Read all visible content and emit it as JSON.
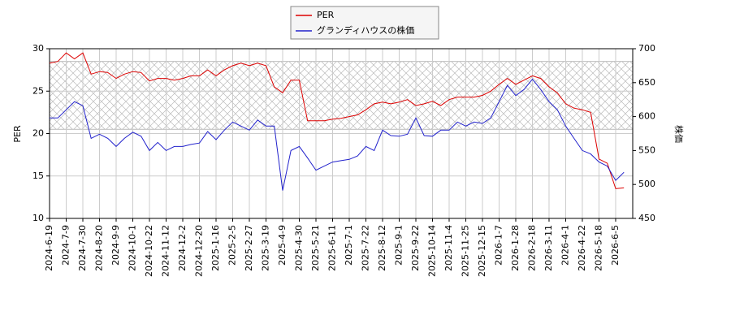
{
  "chart_data": {
    "type": "line",
    "categories": [
      "2024-6-19",
      null,
      "2024-7-9",
      null,
      "2024-7-30",
      null,
      "2024-8-20",
      null,
      "2024-9-9",
      null,
      "2024-10-1",
      null,
      "2024-10-22",
      null,
      "2024-11-12",
      null,
      "2024-12-2",
      null,
      "2024-12-20",
      null,
      "2025-1-16",
      null,
      "2025-2-5",
      null,
      "2025-2-27",
      null,
      "2025-3-19",
      null,
      "2025-4-9",
      null,
      "2025-4-30",
      null,
      "2025-5-21",
      null,
      "2025-6-11",
      null,
      "2025-7-1",
      null,
      "2025-7-22",
      null,
      "2025-8-12",
      null,
      "2025-9-1",
      null,
      "2025-9-22",
      null,
      "2025-10-14",
      null,
      "2025-11-4",
      null,
      "2025-11-25",
      null,
      "2025-12-15",
      null,
      "2026-1-7",
      null,
      "2026-1-28",
      null,
      "2026-2-18",
      null,
      "2026-3-11",
      null,
      "2026-4-1",
      null,
      "2026-4-22",
      null,
      "2026-5-18",
      null,
      "2026-6-5",
      null
    ],
    "series": [
      {
        "name": "PER",
        "color": "#dd0000",
        "values": [
          28.3,
          28.5,
          29.5,
          28.8,
          29.5,
          27.0,
          27.3,
          27.2,
          26.5,
          27.0,
          27.3,
          27.2,
          26.2,
          26.5,
          26.5,
          26.3,
          26.5,
          26.8,
          26.8,
          27.5,
          26.8,
          27.5,
          28.0,
          28.3,
          28.0,
          28.3,
          28.0,
          25.5,
          24.8,
          26.3,
          26.3,
          21.5,
          21.5,
          21.5,
          21.7,
          21.8,
          22.0,
          22.2,
          22.8,
          23.5,
          23.7,
          23.5,
          23.7,
          24.0,
          23.3,
          23.5,
          23.8,
          23.3,
          24.0,
          24.3,
          24.3,
          24.3,
          24.5,
          25.0,
          25.8,
          26.5,
          25.8,
          26.3,
          26.8,
          26.5,
          25.5,
          24.8,
          23.5,
          23.0,
          22.8,
          22.5,
          17.0,
          16.5,
          13.5,
          13.6
        ]
      },
      {
        "name": "グランディハウスの株価",
        "color": "#2222cc",
        "axis": "y2",
        "values": [
          598,
          598,
          610,
          622,
          616,
          568,
          574,
          568,
          556,
          568,
          577,
          571,
          550,
          562,
          550,
          556,
          556,
          559,
          561,
          578,
          566,
          580,
          592,
          586,
          580,
          595,
          586,
          586,
          491,
          550,
          556,
          539,
          521,
          527,
          533,
          535,
          537,
          542,
          556,
          550,
          580,
          572,
          571,
          574,
          598,
          572,
          571,
          580,
          580,
          592,
          586,
          592,
          590,
          598,
          622,
          646,
          631,
          640,
          655,
          640,
          622,
          610,
          586,
          568,
          550,
          545,
          533,
          527,
          506,
          518
        ]
      }
    ],
    "ylabel": "PER",
    "y2label": "株価",
    "ylim": [
      10,
      30
    ],
    "yticks": [
      10,
      15,
      20,
      25,
      30
    ],
    "y2lim": [
      450,
      700
    ],
    "y2ticks": [
      450,
      500,
      550,
      600,
      650,
      700
    ],
    "shaded_range": [
      20.5,
      28.5
    ],
    "grid": true,
    "legend": "top"
  }
}
